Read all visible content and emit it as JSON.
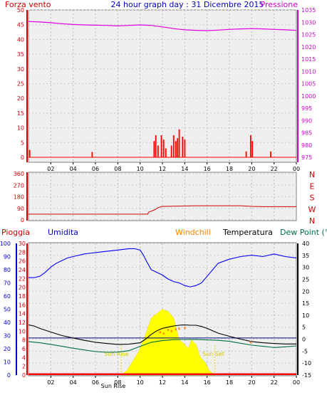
{
  "header": {
    "left_label": "Forza vento",
    "title": "24 hour graph day : 31 Dicembre 2015",
    "right_label": "Pressione"
  },
  "colors": {
    "plot_bg": "#efefef",
    "axis": "#000000",
    "wind": "#ff0000",
    "pressure": "#e000e0",
    "direction": "#d00000",
    "rain": "#ff0000",
    "humidity": "#0000ff",
    "windchill": "#ff8000",
    "temperature": "#000000",
    "dewpoint": "#007040",
    "sun": "#ffff00"
  },
  "x_ticks": [
    "02",
    "04",
    "06",
    "08",
    "10",
    "12",
    "14",
    "16",
    "18",
    "20",
    "22",
    "00"
  ],
  "chart_data": [
    {
      "type": "bar",
      "name": "wind-pressure",
      "xlim": [
        0,
        24
      ],
      "left_axis": {
        "label": "Forza vento",
        "ylim": [
          0,
          50
        ],
        "ticks": [
          0,
          5,
          10,
          15,
          20,
          25,
          30,
          35,
          40,
          45,
          50
        ]
      },
      "right_axis": {
        "label": "Pressione",
        "ylim": [
          975,
          1035
        ],
        "ticks": [
          975,
          980,
          985,
          990,
          995,
          1000,
          1005,
          1010,
          1015,
          1020,
          1025,
          1030,
          1035
        ]
      },
      "wind_bars": [
        {
          "x": 0.1,
          "y": 2.5
        },
        {
          "x": 5.7,
          "y": 1.8
        },
        {
          "x": 11.25,
          "y": 5.5
        },
        {
          "x": 11.4,
          "y": 7.5
        },
        {
          "x": 11.6,
          "y": 4
        },
        {
          "x": 11.9,
          "y": 7.5
        },
        {
          "x": 12.1,
          "y": 6
        },
        {
          "x": 12.3,
          "y": 3
        },
        {
          "x": 12.8,
          "y": 4
        },
        {
          "x": 13.0,
          "y": 7.5
        },
        {
          "x": 13.2,
          "y": 5.5
        },
        {
          "x": 13.35,
          "y": 6.5
        },
        {
          "x": 13.5,
          "y": 9.5
        },
        {
          "x": 13.8,
          "y": 7
        },
        {
          "x": 14.0,
          "y": 6
        },
        {
          "x": 19.5,
          "y": 2
        },
        {
          "x": 19.9,
          "y": 7.5
        },
        {
          "x": 20.05,
          "y": 5.5
        },
        {
          "x": 21.7,
          "y": 2
        }
      ],
      "pressure": {
        "x": [
          0,
          1,
          2,
          3,
          4,
          5,
          6,
          7,
          8,
          9,
          10,
          11,
          12,
          13,
          14,
          15,
          16,
          17,
          18,
          19,
          20,
          21,
          22,
          23,
          24
        ],
        "y": [
          1030.3,
          1030.1,
          1029.8,
          1029.4,
          1029.1,
          1028.9,
          1028.8,
          1028.7,
          1028.5,
          1028.7,
          1028.9,
          1028.7,
          1028.1,
          1027.4,
          1026.9,
          1026.7,
          1026.6,
          1026.8,
          1027.1,
          1027.3,
          1027.4,
          1027.3,
          1027.1,
          1026.9,
          1026.7
        ]
      }
    },
    {
      "type": "line",
      "name": "wind-direction",
      "xlim": [
        0,
        24
      ],
      "ylim": [
        0,
        360
      ],
      "ticks": [
        0,
        90,
        180,
        270,
        360
      ],
      "compass_labels": [
        "N",
        "W",
        "S",
        "E",
        "N"
      ],
      "series": {
        "x": [
          0,
          10.7,
          10.75,
          11.3,
          11.6,
          12,
          15,
          17,
          18,
          19,
          20,
          21,
          24
        ],
        "y": [
          45,
          45,
          60,
          78,
          95,
          105,
          110,
          110,
          110,
          110,
          105,
          103,
          103
        ]
      }
    },
    {
      "type": "line",
      "name": "rain-humidity-temperature",
      "xlim": [
        0,
        24
      ],
      "headers": {
        "rain": "Pioggia",
        "humidity": "Umidita",
        "windchill": "Windchill",
        "temperature": "Temperatura",
        "dewpoint": "Dew Point (°C"
      },
      "humidity_axis": {
        "ylim": [
          0,
          100
        ],
        "ticks": [
          0,
          10,
          20,
          30,
          40,
          50,
          60,
          70,
          80,
          90,
          100
        ]
      },
      "rain_axis": {
        "ylim": [
          0,
          30
        ],
        "ticks": [
          0,
          2,
          4,
          6,
          8,
          10,
          12,
          14,
          16,
          18,
          20,
          22,
          24,
          26,
          28,
          30
        ]
      },
      "temp_axis": {
        "ylim": [
          -15,
          40
        ],
        "ticks": [
          -15,
          -10,
          -5,
          0,
          5,
          10,
          15,
          20,
          25,
          30,
          35,
          40
        ]
      },
      "humidity": {
        "x": [
          0,
          0.5,
          1,
          1.5,
          2,
          2.5,
          3,
          3.5,
          4,
          5,
          6,
          7,
          8,
          9,
          9.5,
          10,
          10.3,
          10.6,
          11,
          11.5,
          12,
          12.5,
          13,
          13.5,
          14,
          14.5,
          15,
          15.5,
          16,
          16.5,
          17,
          18,
          19,
          20,
          21,
          22,
          23,
          24
        ],
        "y": [
          74,
          74,
          75,
          78,
          82,
          85,
          87,
          89,
          90,
          92,
          93,
          94,
          95,
          96,
          96,
          95,
          91,
          86,
          80,
          78,
          76,
          73,
          71,
          70,
          68,
          67,
          68,
          70,
          75,
          80,
          85,
          88,
          90,
          91,
          90,
          92,
          90,
          89
        ]
      },
      "temperature": {
        "x": [
          0,
          0.5,
          1,
          2,
          3,
          4,
          5,
          6,
          7,
          8,
          9,
          10,
          10.5,
          11,
          11.5,
          12,
          12.5,
          13,
          13.5,
          14,
          14.5,
          15,
          15.5,
          16,
          16.5,
          17,
          18,
          19,
          20,
          21,
          22,
          23,
          24
        ],
        "y": [
          6,
          5.5,
          4.5,
          3,
          1.5,
          0.5,
          -0.5,
          -1.3,
          -1.8,
          -2.2,
          -2.1,
          -1.5,
          0,
          2,
          3.5,
          4.5,
          5,
          5.5,
          5.8,
          6,
          5.8,
          5.8,
          5.3,
          4.5,
          3.5,
          2.5,
          1.2,
          0,
          -1,
          -1.5,
          -1.8,
          -2,
          -2
        ]
      },
      "dewpoint": {
        "x": [
          0,
          1,
          2,
          3,
          4,
          5,
          6,
          7,
          8,
          9,
          10,
          11,
          12,
          13,
          14,
          15,
          16,
          17,
          18,
          19,
          20,
          21,
          22,
          23,
          24
        ],
        "y": [
          -1,
          -1.5,
          -2.2,
          -3,
          -3.8,
          -4.5,
          -5.2,
          -5.5,
          -5.4,
          -4.8,
          -3,
          -1.3,
          -0.6,
          -0.2,
          -0.1,
          -0.1,
          -0.3,
          -0.5,
          -0.9,
          -1.7,
          -2.5,
          -3,
          -3.5,
          -3.2,
          -2.8
        ]
      },
      "windchill": {
        "x": [
          11.8,
          12.1,
          12.5,
          12.8,
          13.2,
          13.5,
          14.0,
          19.9
        ],
        "y": [
          3,
          2.5,
          4,
          3.5,
          4.2,
          4.5,
          4.8,
          -1.2
        ]
      },
      "flat_reference_line_temp": 0.5,
      "rain_total_mm": 0.4,
      "sun": {
        "rise_label": "Sun Rise",
        "set_label": "Sun Set",
        "bottom_marker_label": "Sun Rise",
        "rise_hour": 8.3,
        "set_hour": 16.7,
        "x": [
          8.3,
          8.8,
          9.3,
          9.8,
          10.3,
          10.6,
          11,
          11.5,
          12,
          12.5,
          13,
          13.5,
          14,
          14.3,
          14.6,
          15,
          15.4,
          15.8,
          16.2,
          16.7
        ],
        "y": [
          0,
          1,
          3,
          5,
          8,
          10,
          13,
          14,
          15,
          14.5,
          13,
          8,
          7,
          6,
          8,
          7,
          4,
          3,
          1,
          0
        ]
      }
    }
  ]
}
